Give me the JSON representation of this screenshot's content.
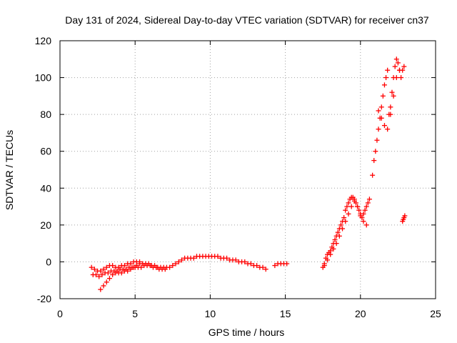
{
  "chart_data": {
    "type": "scatter",
    "title": "Day 131 of 2024, Sidereal Day-to-day VTEC variation (SDTVAR) for receiver cn37",
    "xlabel": "GPS time / hours",
    "ylabel": "SDTVAR / TECUs",
    "xlim": [
      0,
      25
    ],
    "ylim": [
      -20,
      120
    ],
    "xticks": [
      0,
      5,
      10,
      15,
      20,
      25
    ],
    "yticks": [
      -20,
      0,
      20,
      40,
      60,
      80,
      100,
      120
    ],
    "grid": true,
    "marker": "+",
    "color": "#ff0000",
    "series": [
      {
        "name": "SDTVAR",
        "x": [
          2.1,
          2.3,
          2.5,
          2.7,
          2.9,
          3.1,
          3.3,
          3.5,
          3.7,
          3.9,
          4.1,
          4.3,
          4.5,
          4.7,
          4.9,
          5.1,
          5.3,
          5.5,
          5.7,
          5.9,
          6.1,
          6.3,
          6.5,
          6.7,
          6.9,
          7.1,
          7.3,
          7.5,
          7.7,
          7.9,
          8.1,
          8.3,
          8.5,
          8.7,
          8.9,
          9.1,
          9.3,
          9.5,
          9.7,
          9.9,
          10.1,
          10.3,
          10.5,
          10.7,
          10.9,
          11.1,
          11.3,
          11.5,
          11.7,
          11.9,
          12.1,
          12.3,
          12.5,
          12.7,
          12.9,
          13.1,
          13.3,
          13.5,
          13.7,
          14.3,
          14.5,
          14.7,
          14.9,
          15.1,
          2.2,
          2.4,
          2.6,
          2.8,
          3.0,
          3.2,
          3.4,
          3.6,
          3.8,
          4.0,
          4.2,
          4.4,
          4.6,
          4.8,
          5.0,
          5.2,
          5.4,
          5.6,
          5.8,
          6.0,
          6.2,
          6.4,
          6.6,
          6.8,
          7.0,
          2.7,
          2.9,
          3.1,
          3.3,
          3.5,
          3.7,
          3.9,
          4.1,
          4.3,
          4.5,
          4.7,
          4.9,
          5.1,
          5.3,
          17.5,
          17.6,
          17.7,
          17.8,
          17.9,
          18.0,
          18.1,
          18.2,
          18.3,
          18.4,
          18.5,
          18.6,
          18.7,
          18.8,
          18.9,
          19.0,
          19.1,
          19.2,
          19.3,
          19.4,
          19.5,
          19.6,
          19.7,
          19.8,
          19.9,
          20.0,
          20.1,
          20.2,
          20.3,
          20.4,
          20.5,
          20.6,
          17.6,
          17.8,
          18.0,
          18.2,
          18.4,
          18.6,
          18.8,
          19.0,
          19.2,
          19.4,
          19.6,
          19.8,
          20.0,
          20.2,
          20.4,
          20.8,
          20.9,
          21.0,
          21.1,
          21.2,
          21.3,
          21.4,
          21.5,
          21.6,
          21.7,
          21.8,
          21.9,
          22.0,
          22.1,
          22.2,
          22.3,
          22.4,
          22.5,
          22.6,
          22.7,
          22.8,
          22.9,
          21.2,
          21.4,
          21.6,
          21.8,
          22.0,
          22.2,
          22.4,
          22.6,
          22.8,
          22.85,
          22.9,
          22.95
        ],
        "y": [
          -3,
          -4,
          -5,
          -5,
          -4,
          -3,
          -2,
          -2,
          -3,
          -3,
          -2,
          -2,
          -1,
          -1,
          0,
          0,
          0,
          -1,
          -1,
          -1,
          -2,
          -2,
          -3,
          -3,
          -3,
          -3,
          -3,
          -2,
          -1,
          0,
          1,
          2,
          2,
          2,
          2,
          3,
          3,
          3,
          3,
          3,
          3,
          3,
          3,
          2,
          2,
          2,
          1,
          1,
          1,
          0,
          0,
          0,
          -1,
          -1,
          -2,
          -2,
          -3,
          -3,
          -4,
          -2,
          -1,
          -1,
          -1,
          -1,
          -7,
          -7,
          -8,
          -7,
          -6,
          -6,
          -5,
          -5,
          -5,
          -4,
          -4,
          -4,
          -3,
          -3,
          -3,
          -3,
          -3,
          -2,
          -2,
          -2,
          -3,
          -3,
          -4,
          -4,
          -4,
          -15,
          -13,
          -11,
          -9,
          -7,
          -6,
          -6,
          -6,
          -5,
          -5,
          -4,
          -3,
          -2,
          -1,
          -3,
          -1,
          2,
          4,
          5,
          6,
          8,
          10,
          12,
          14,
          16,
          18,
          20,
          22,
          24,
          28,
          30,
          32,
          34,
          35,
          35,
          34,
          32,
          30,
          28,
          26,
          24,
          26,
          28,
          30,
          32,
          34,
          -2,
          1,
          4,
          7,
          10,
          14,
          18,
          22,
          26,
          30,
          33,
          30,
          25,
          22,
          20,
          47,
          55,
          60,
          66,
          72,
          78,
          84,
          90,
          96,
          100,
          104,
          80,
          84,
          92,
          100,
          106,
          110,
          108,
          104,
          100,
          104,
          106,
          82,
          78,
          74,
          72,
          80,
          90,
          100,
          104,
          22,
          23,
          24,
          25
        ]
      }
    ]
  }
}
